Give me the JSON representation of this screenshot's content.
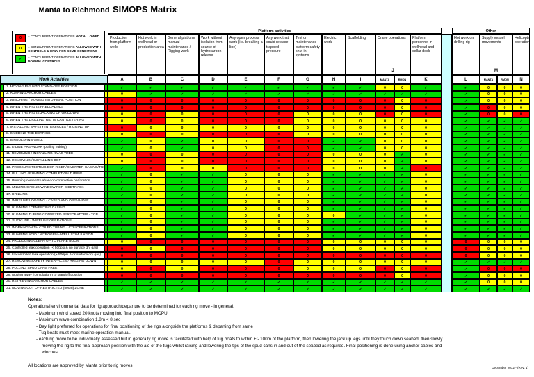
{
  "title": {
    "prefix": "Manta to Richmond",
    "emphasis": "SIMOPS Matrix"
  },
  "legend": {
    "items": [
      {
        "symbol": "0",
        "code": "R",
        "text": "= CONCURRENT OPERATIONS ",
        "bold1": "NOT ALLOWED",
        "bold2": ""
      },
      {
        "symbol": "0",
        "code": "Y",
        "text": "= CONCURRENT OPERATIONS ",
        "bold1": "ALLOWED WITH",
        "bold2": "CONTROLS & ONLY FOR SOME CONDITIONS"
      },
      {
        "symbol": "✓",
        "code": "G",
        "text": "= CONCURRENT OPERATIONS ",
        "bold1": "ALLOWED WITH",
        "bold2": "NORMAL CONTROLS"
      }
    ]
  },
  "colors": {
    "G": "#00dc00",
    "Y": "#ffff00",
    "R": "#ff0000",
    "gap": "#ccffff",
    "header_band": "#c8eef6"
  },
  "symbols": {
    "G": "✓",
    "Y": "0",
    "R": "0"
  },
  "table": {
    "group_headers": {
      "platform": "Platform activities",
      "other": "Other"
    },
    "work_activities_label": "Work Activities",
    "columns": [
      {
        "letter": "A",
        "title": "Production from platform wells"
      },
      {
        "letter": "B",
        "title": "Hot work in wellhead or production area"
      },
      {
        "letter": "C",
        "title": "General platform manual maintenance / Rigging work"
      },
      {
        "letter": "D",
        "title": "Work without isolation from source of hydrocarbon release"
      },
      {
        "letter": "E",
        "title": "Any open process work (i.e. breaking a line)"
      },
      {
        "letter": "F",
        "title": "Any work that could release trapped pressure"
      },
      {
        "letter": "G",
        "title": "Test or maintenance platform safety shut in systems"
      },
      {
        "letter": "H",
        "title": "Electric work"
      },
      {
        "letter": "I",
        "title": "Scaffolding"
      },
      {
        "letter": "J",
        "title": "Crane operations",
        "subs": [
          "MANTA",
          "RMON"
        ]
      },
      {
        "letter": "K",
        "title": "Platform personnel in wellhead and cellar deck"
      },
      {
        "letter": "L",
        "title": "Hot work on drilling rig"
      },
      {
        "letter": "M",
        "title": "Supply vessel movements",
        "subs": [
          "MANTA",
          "RMON"
        ]
      },
      {
        "letter": "N",
        "title": "Helicopter operations"
      }
    ],
    "cell_order": [
      "A",
      "B",
      "C",
      "D",
      "E",
      "F",
      "G",
      "H",
      "I",
      "J-MANTA",
      "J-RMON",
      "K",
      "L",
      "M-MANTA",
      "M-RMON",
      "N"
    ],
    "rows": [
      {
        "label": "1. MOVING RIG INTO STAND-OFF POSITION",
        "rating": "G",
        "cells": "GGGGGGGGGYYGGYYY"
      },
      {
        "label": "2. RUNNING ANCHOR CABLES",
        "rating": "Y",
        "cells": "YGGGGGGGGGGGGYYY"
      },
      {
        "label": "3. WINCHING / MOVING INTO FINAL POSITION",
        "rating": "R",
        "cells": "RRRRRRRRRRYRGYYY"
      },
      {
        "label": "4. WHEN THE RIG IS PRELOADING",
        "rating": "R",
        "cells": "RRRRRRRRRRYRGRYY"
      },
      {
        "label": "5. WHEN THE RIG IS JACKING UP OR DOWN",
        "rating": "R",
        "cells": "YRYRRRYYYRYRGRYR"
      },
      {
        "label": "6. WHEN THE DRILLING RIG IS CANTILEVERING",
        "rating": "R",
        "cells": "YRYRRRYYYYYYGGGG"
      },
      {
        "label": "7. INSTALLING SAFETY INTERFACES / RIGGING UP",
        "rating": "R",
        "cells": "RYYYYYYYYYYYGGGG"
      },
      {
        "label": "8. SKIDDING THE DERRICK",
        "rating": "Y",
        "cells": "YRYRRRYYYYYYGGGG"
      },
      {
        "label": "9. CIRCULATING WELL",
        "rating": "G",
        "cells": "GYGYYRRGGYYYGGGG"
      },
      {
        "label": "10. E-LINE PRE-WORK (pulling Tubing)",
        "rating": "G",
        "cells": "GYGYYRRGGYYYGGGG"
      },
      {
        "label": "11. REMOVING / INSTALLING XMAS TREE",
        "rating": "Y",
        "cells": "YRYRRRRYYYGYGGGG"
      },
      {
        "label": "12. REMOVING / INSTALLING BOP",
        "rating": "Y",
        "cells": "YRYRRRRYYYGYGGGG"
      },
      {
        "label": "13. PRESSURE TESTING BOP RISER/DIVERTER CASING/TUBING",
        "rating": "G",
        "cells": "GRYYRRRYYYGRGGGG"
      },
      {
        "label": "14. PULLING / RUNNING COMPLETION TUBING",
        "rating": "G",
        "cells": "GYGGYYYGGGGYGGGG"
      },
      {
        "label": "15. Pumping cement to abandon completion perforation",
        "rating": "G",
        "cells": "GYGGYYYGGGGYGGGG"
      },
      {
        "label": "16. MILLING CASING WINDOW FOR SIDETRACK",
        "rating": "G",
        "cells": "GYGGYYYGGGGYGGGG"
      },
      {
        "label": "17. DRILLING",
        "rating": "G",
        "cells": "GYGGYYYGGGGYGGGG"
      },
      {
        "label": "18. WIRELINE LOGGING - CASED AND OPEN HOLE",
        "rating": "G",
        "cells": "GYGGYYYGGGGYGGGG"
      },
      {
        "label": "19. RUNNING / CEMENTING CASING",
        "rating": "G",
        "cells": "GYGGYYYGGGGYGGGG"
      },
      {
        "label": "20. RUNNING TUBING CONVEYED PERFORATORS - TCP",
        "rating": "G",
        "cells": "GYGGYYYYGGGYGGGG"
      },
      {
        "label": "21. SLICKLINE / WIRELINE OPERATIONS",
        "rating": "G",
        "cells": "GYGGYYYGGGGYGGGG"
      },
      {
        "label": "22. WORKING WITH COILED TUBING - CTU OPERATIONS",
        "rating": "G",
        "cells": "GYGGYYYGGGGYGGGG"
      },
      {
        "label": "23. PUMPING ACID / NITROGEN - WELL STIMULATION",
        "rating": "G",
        "cells": "GYGGYYYGGGGYGGGG"
      },
      {
        "label": "24. PRODUCING CLEAN UP TO FLARE BOOM",
        "rating": "Y",
        "cells": "YRRRRRRYYYYYRYYY"
      },
      {
        "label": "25. Controlled leak operation (< 500psi & no surface dry gas)",
        "rating": "R",
        "cells": "RYRRRRRYYYYYRYYY"
      },
      {
        "label": "26. Uncontrolled leak operation (> 500psi &/or surface dry gas)",
        "rating": "R",
        "cells": "RRRRRRRRRRRRRYYY"
      },
      {
        "label": "27. REMOVING SAFETY INTERFACES / RIGGING DOWN",
        "rating": "Y",
        "cells": "YYYYYRYYYYYYGGGG"
      },
      {
        "label": "28. PULLING SPUD CANS FREE",
        "rating": "Y",
        "cells": "YRYRRRYYYRYRGRRR"
      },
      {
        "label": "29. Moving away from platform to standoff position",
        "rating": "R",
        "cells": "RRRRRRRRRRYRGYYY"
      },
      {
        "label": "30. RETRIEVING ANCHOR CABLES",
        "rating": "G",
        "cells": "GGGGGGGGGGGGGYYY"
      },
      {
        "label": "31. MOVING OUT OF RESTRICTED (500m) ZONE",
        "rating": "G",
        "cells": "GGGGGGGGGGGGGGGG"
      }
    ]
  },
  "notes": {
    "title": "Notes:",
    "intro": "Operational environmental data for rig approach/departure to be determined for each rig move - in general,",
    "bullets": [
      "Maximum wind speed 20 knots moving into final position to MOPU.",
      "Maximum wave combination 1.8m < 8 sec",
      "Day light preferred for operations for final positioning of the rigs alongside the platforms & departing from same",
      "Tug boats must meet marine operation manual.",
      "each rig move to be individually assessed but in generally rig move is facilitated with help of tug boats to within +/- 100m of the platform, then lowering the jack up legs until they touch down seabed, then slowly moving the rig to the final approach position with the aid of the tugs whilst raising and lowering the tips of the spud cans in and out of the seabed as required. Final positioning is done using anchor cables and winches."
    ],
    "final_line": "All locations are approved by Manta prior to rig moves"
  },
  "footer": {
    "text": "December 2012 - (Rev. 1)"
  }
}
